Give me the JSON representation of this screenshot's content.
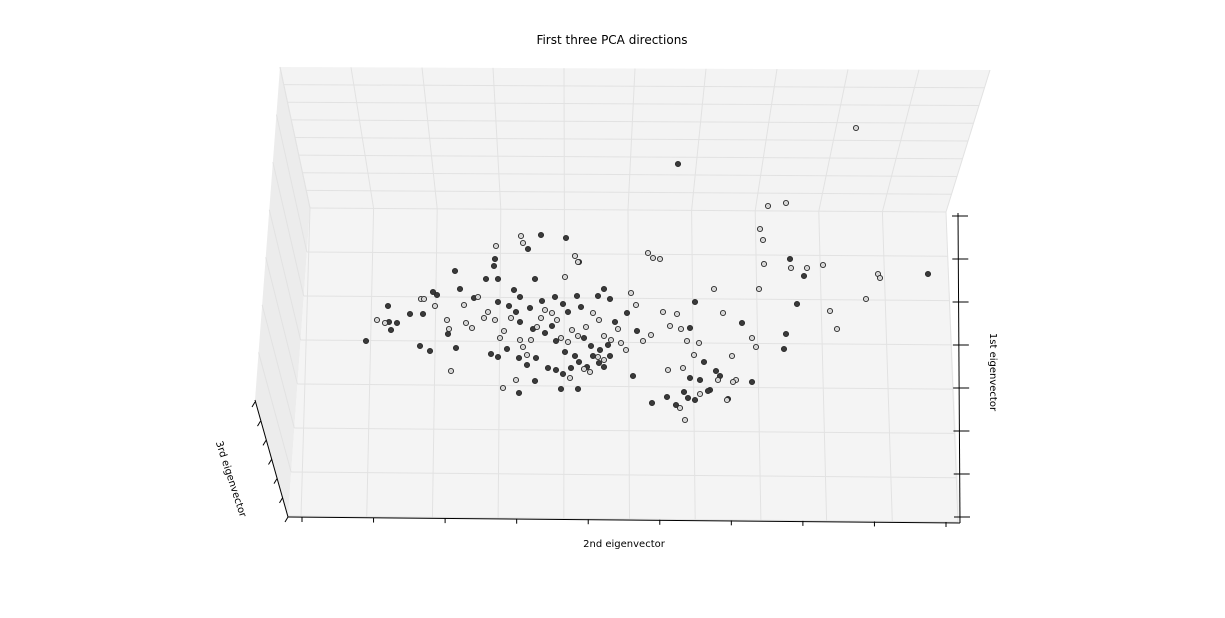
{
  "chart_data": {
    "type": "scatter",
    "title": "First three PCA directions",
    "xlabel": "2nd eigenvector",
    "ylabel": "1st eigenvector",
    "zlabel": "3rd eigenvector",
    "grid": true,
    "series": [
      {
        "shade": "dark",
        "color": "#3a3a3a",
        "points": [
          [
            455,
            271
          ],
          [
            498,
            279
          ],
          [
            486,
            279
          ],
          [
            388,
            306
          ],
          [
            410,
            314
          ],
          [
            397,
            323
          ],
          [
            389,
            322
          ],
          [
            391,
            330
          ],
          [
            366,
            341
          ],
          [
            423,
            314
          ],
          [
            420,
            346
          ],
          [
            430,
            351
          ],
          [
            448,
            334
          ],
          [
            456,
            348
          ],
          [
            437,
            295
          ],
          [
            433,
            292
          ],
          [
            460,
            289
          ],
          [
            474,
            298
          ],
          [
            498,
            302
          ],
          [
            514,
            290
          ],
          [
            520,
            297
          ],
          [
            509,
            306
          ],
          [
            516,
            312
          ],
          [
            530,
            308
          ],
          [
            535,
            279
          ],
          [
            542,
            301
          ],
          [
            555,
            297
          ],
          [
            563,
            304
          ],
          [
            568,
            312
          ],
          [
            577,
            296
          ],
          [
            581,
            307
          ],
          [
            598,
            296
          ],
          [
            604,
            289
          ],
          [
            610,
            299
          ],
          [
            520,
            322
          ],
          [
            533,
            329
          ],
          [
            545,
            333
          ],
          [
            552,
            326
          ],
          [
            556,
            341
          ],
          [
            565,
            352
          ],
          [
            575,
            356
          ],
          [
            584,
            338
          ],
          [
            591,
            346
          ],
          [
            600,
            350
          ],
          [
            604,
            367
          ],
          [
            610,
            356
          ],
          [
            615,
            322
          ],
          [
            627,
            313
          ],
          [
            637,
            331
          ],
          [
            494,
            266
          ],
          [
            495,
            259
          ],
          [
            528,
            249
          ],
          [
            541,
            235
          ],
          [
            566,
            238
          ],
          [
            579,
            262
          ],
          [
            491,
            354
          ],
          [
            498,
            357
          ],
          [
            507,
            349
          ],
          [
            519,
            358
          ],
          [
            527,
            365
          ],
          [
            536,
            358
          ],
          [
            548,
            368
          ],
          [
            556,
            370
          ],
          [
            563,
            374
          ],
          [
            571,
            368
          ],
          [
            579,
            362
          ],
          [
            587,
            367
          ],
          [
            593,
            356
          ],
          [
            599,
            363
          ],
          [
            608,
            345
          ],
          [
            519,
            393
          ],
          [
            535,
            381
          ],
          [
            561,
            389
          ],
          [
            578,
            389
          ],
          [
            633,
            376
          ],
          [
            652,
            403
          ],
          [
            667,
            397
          ],
          [
            676,
            405
          ],
          [
            688,
            398
          ],
          [
            695,
            400
          ],
          [
            704,
            362
          ],
          [
            716,
            371
          ],
          [
            710,
            390
          ],
          [
            720,
            376
          ],
          [
            728,
            399
          ],
          [
            690,
            328
          ],
          [
            695,
            302
          ],
          [
            742,
            323
          ],
          [
            752,
            382
          ],
          [
            784,
            349
          ],
          [
            786,
            334
          ],
          [
            797,
            304
          ],
          [
            790,
            259
          ],
          [
            804,
            276
          ],
          [
            928,
            274
          ],
          [
            678,
            164
          ],
          [
            708,
            391
          ],
          [
            690,
            378
          ],
          [
            684,
            392
          ],
          [
            700,
            380
          ]
        ]
      },
      {
        "shade": "light",
        "color": "#d6d6d6",
        "points": [
          [
            377,
            320
          ],
          [
            385,
            323
          ],
          [
            421,
            299
          ],
          [
            424,
            299
          ],
          [
            435,
            306
          ],
          [
            449,
            329
          ],
          [
            447,
            320
          ],
          [
            464,
            305
          ],
          [
            466,
            323
          ],
          [
            472,
            328
          ],
          [
            478,
            297
          ],
          [
            484,
            318
          ],
          [
            488,
            312
          ],
          [
            495,
            320
          ],
          [
            500,
            338
          ],
          [
            504,
            331
          ],
          [
            511,
            318
          ],
          [
            520,
            340
          ],
          [
            523,
            347
          ],
          [
            527,
            355
          ],
          [
            531,
            340
          ],
          [
            537,
            327
          ],
          [
            541,
            318
          ],
          [
            545,
            310
          ],
          [
            552,
            313
          ],
          [
            557,
            320
          ],
          [
            561,
            338
          ],
          [
            568,
            342
          ],
          [
            572,
            330
          ],
          [
            578,
            336
          ],
          [
            586,
            327
          ],
          [
            593,
            313
          ],
          [
            599,
            320
          ],
          [
            604,
            336
          ],
          [
            611,
            340
          ],
          [
            618,
            329
          ],
          [
            621,
            343
          ],
          [
            626,
            350
          ],
          [
            631,
            293
          ],
          [
            636,
            305
          ],
          [
            643,
            341
          ],
          [
            651,
            335
          ],
          [
            663,
            312
          ],
          [
            670,
            326
          ],
          [
            677,
            314
          ],
          [
            681,
            329
          ],
          [
            687,
            341
          ],
          [
            694,
            355
          ],
          [
            699,
            343
          ],
          [
            714,
            289
          ],
          [
            723,
            313
          ],
          [
            732,
            356
          ],
          [
            736,
            380
          ],
          [
            752,
            338
          ],
          [
            756,
            347
          ],
          [
            759,
            289
          ],
          [
            764,
            264
          ],
          [
            760,
            229
          ],
          [
            763,
            240
          ],
          [
            768,
            206
          ],
          [
            786,
            203
          ],
          [
            791,
            268
          ],
          [
            807,
            268
          ],
          [
            823,
            265
          ],
          [
            830,
            311
          ],
          [
            837,
            329
          ],
          [
            866,
            299
          ],
          [
            878,
            274
          ],
          [
            880,
            278
          ],
          [
            856,
            128
          ],
          [
            496,
            246
          ],
          [
            521,
            236
          ],
          [
            523,
            243
          ],
          [
            565,
            277
          ],
          [
            575,
            256
          ],
          [
            578,
            262
          ],
          [
            648,
            253
          ],
          [
            653,
            258
          ],
          [
            660,
            259
          ],
          [
            503,
            388
          ],
          [
            516,
            380
          ],
          [
            570,
            378
          ],
          [
            584,
            369
          ],
          [
            590,
            372
          ],
          [
            598,
            357
          ],
          [
            604,
            360
          ],
          [
            451,
            371
          ],
          [
            668,
            370
          ],
          [
            683,
            368
          ],
          [
            700,
            394
          ],
          [
            718,
            380
          ],
          [
            685,
            420
          ],
          [
            680,
            408
          ],
          [
            727,
            400
          ],
          [
            733,
            382
          ]
        ]
      }
    ]
  }
}
